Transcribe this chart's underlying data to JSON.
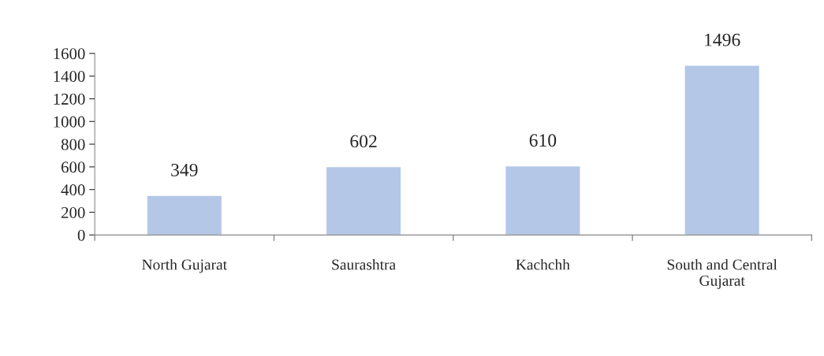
{
  "chart_data": {
    "type": "bar",
    "categories": [
      "North Gujarat",
      "Saurashtra",
      "Kachchh",
      "South and Central\nGujarat"
    ],
    "values": [
      349,
      602,
      610,
      1496
    ],
    "color": "#b4c7e7",
    "ylim": [
      0,
      1600
    ],
    "yticks": [
      0,
      200,
      400,
      600,
      800,
      1000,
      1200,
      1400,
      1600
    ],
    "data_labels": true,
    "grid": false,
    "legend": false
  }
}
